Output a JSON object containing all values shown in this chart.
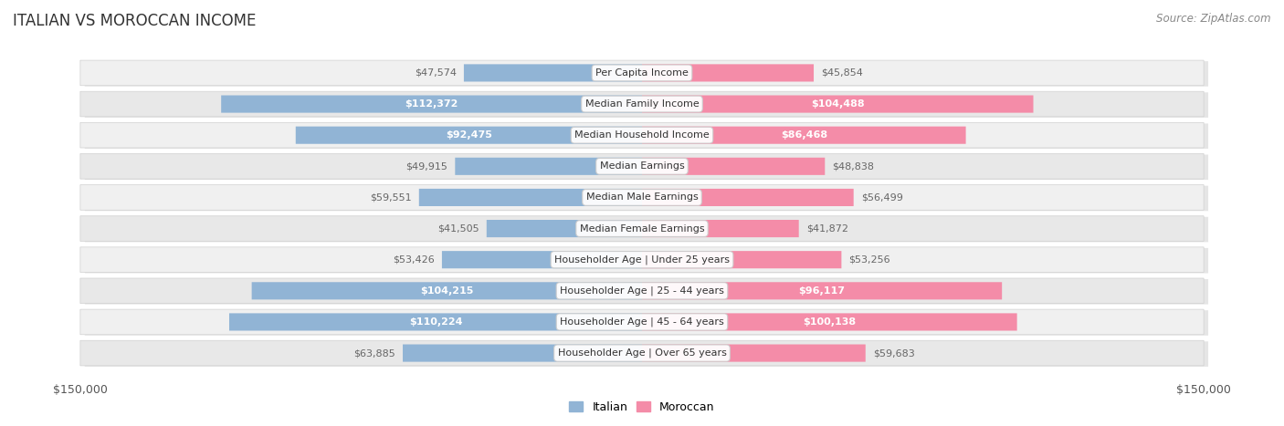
{
  "title": "ITALIAN VS MOROCCAN INCOME",
  "source": "Source: ZipAtlas.com",
  "categories": [
    "Per Capita Income",
    "Median Family Income",
    "Median Household Income",
    "Median Earnings",
    "Median Male Earnings",
    "Median Female Earnings",
    "Householder Age | Under 25 years",
    "Householder Age | 25 - 44 years",
    "Householder Age | 45 - 64 years",
    "Householder Age | Over 65 years"
  ],
  "italian_values": [
    47574,
    112372,
    92475,
    49915,
    59551,
    41505,
    53426,
    104215,
    110224,
    63885
  ],
  "moroccan_values": [
    45854,
    104488,
    86468,
    48838,
    56499,
    41872,
    53256,
    96117,
    100138,
    59683
  ],
  "italian_labels": [
    "$47,574",
    "$112,372",
    "$92,475",
    "$49,915",
    "$59,551",
    "$41,505",
    "$53,426",
    "$104,215",
    "$110,224",
    "$63,885"
  ],
  "moroccan_labels": [
    "$45,854",
    "$104,488",
    "$86,468",
    "$48,838",
    "$56,499",
    "$41,872",
    "$53,256",
    "$96,117",
    "$100,138",
    "$59,683"
  ],
  "max_value": 150000,
  "italian_color": "#91b4d5",
  "moroccan_color": "#f48ca8",
  "italian_label_inside_color": "#ffffff",
  "moroccan_label_inside_color": "#ffffff",
  "italian_label_outside_color": "#666666",
  "moroccan_label_outside_color": "#666666",
  "background_color": "#ffffff",
  "row_colors": [
    "#f0f0f0",
    "#e8e8e8"
  ],
  "row_border_color": "#d0d0d0",
  "legend_italian": "Italian",
  "legend_moroccan": "Moroccan",
  "xlabel_left": "$150,000",
  "xlabel_right": "$150,000",
  "inside_threshold": 75000,
  "title_fontsize": 12,
  "source_fontsize": 8.5,
  "bar_label_fontsize": 8,
  "category_fontsize": 8,
  "axis_label_fontsize": 9,
  "legend_fontsize": 9
}
